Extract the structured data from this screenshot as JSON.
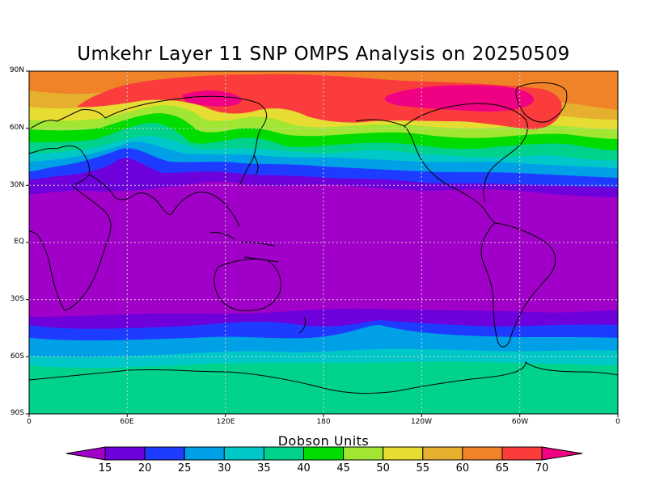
{
  "title": "Umkehr Layer 11 SNP OMPS Analysis on 20250509",
  "lat_labels": [
    "90N",
    "60N",
    "30N",
    "EQ",
    "30S",
    "60S",
    "90S"
  ],
  "lon_labels": [
    "0",
    "60E",
    "120E",
    "180",
    "120W",
    "60W",
    "0"
  ],
  "colorbar": {
    "title": "Dobson Units",
    "ticks": [
      "15",
      "20",
      "25",
      "30",
      "35",
      "40",
      "45",
      "50",
      "55",
      "60",
      "65",
      "70"
    ],
    "colors": [
      "#a000c8",
      "#6e00dc",
      "#1e3cff",
      "#00a0e6",
      "#00c8c8",
      "#00d28c",
      "#00dc00",
      "#a0e632",
      "#e6dc32",
      "#e6af2d",
      "#f08228",
      "#fa3c3c",
      "#f00082"
    ]
  },
  "field": {
    "units": "Dobson Units",
    "latitude_bands": [
      "90N",
      "60N",
      "30N",
      "EQ",
      "30S",
      "60S",
      "90S"
    ],
    "approx_values": [
      65,
      70,
      55,
      35,
      15,
      15,
      20,
      25,
      40
    ]
  }
}
